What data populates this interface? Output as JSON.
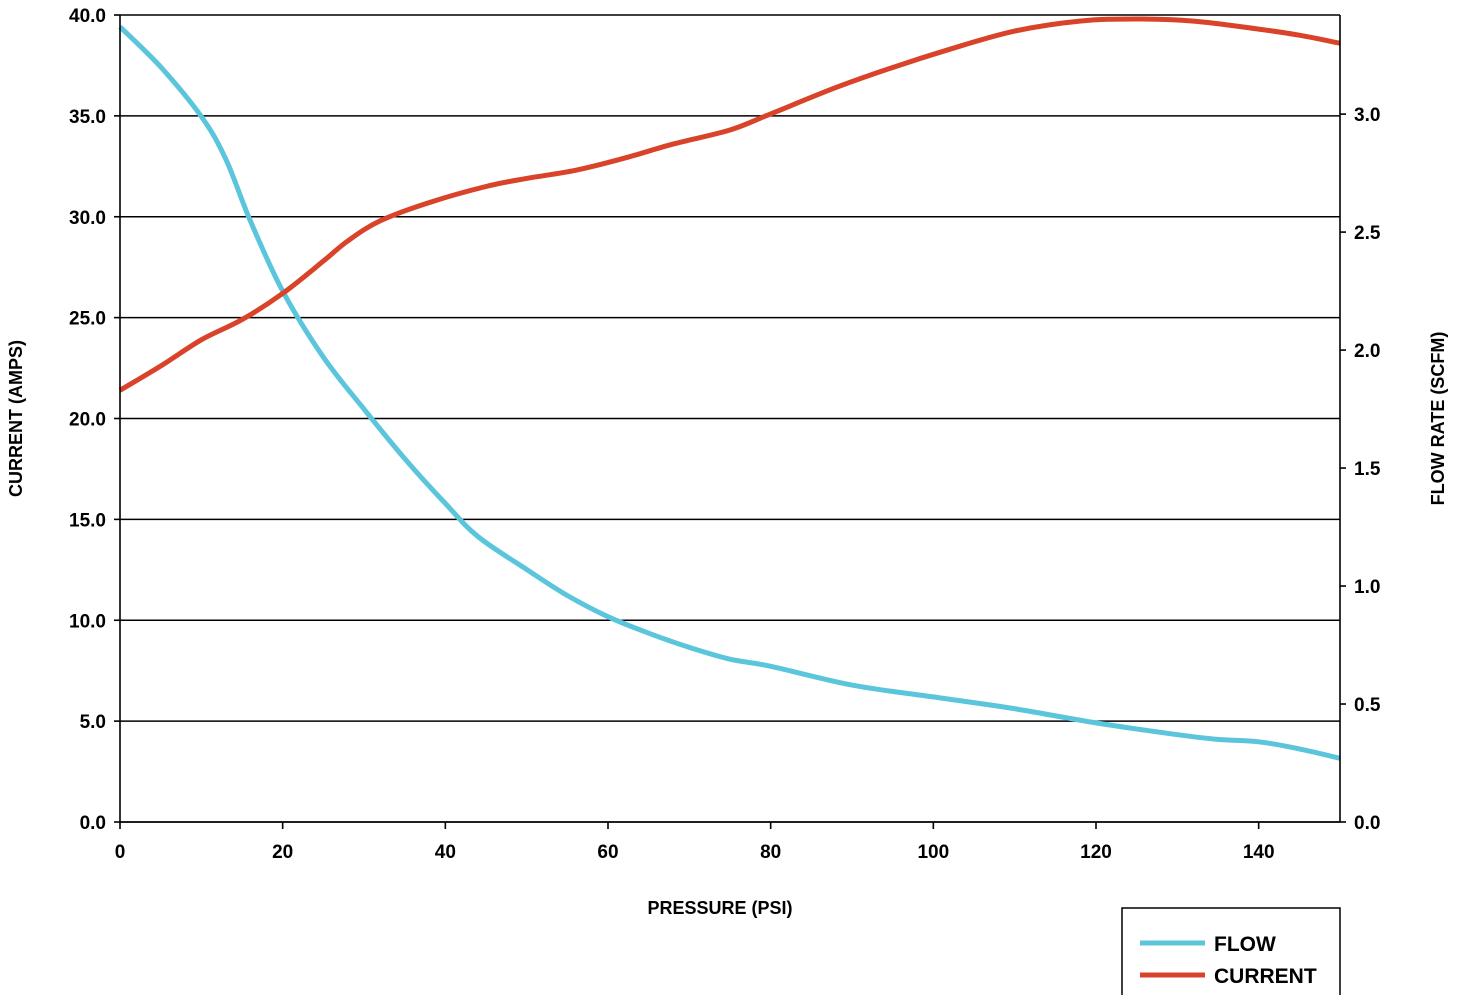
{
  "chart_data": {
    "type": "line",
    "title": "",
    "xlabel": "PRESSURE (PSI)",
    "ylabel": "CURRENT (AMPS)",
    "y2label": "FLOW RATE (SCFM)",
    "xlim": [
      0,
      150
    ],
    "ylim": [
      0,
      40
    ],
    "y2lim": [
      0,
      3.42
    ],
    "x_ticks": [
      "0",
      "20",
      "40",
      "60",
      "80",
      "100",
      "120",
      "140"
    ],
    "y_ticks": [
      "0.0",
      "5.0",
      "10.0",
      "15.0",
      "20.0",
      "25.0",
      "30.0",
      "35.0",
      "40.0"
    ],
    "y2_ticks": [
      "0.0",
      "0.5",
      "1.0",
      "1.5",
      "2.0",
      "2.5",
      "3.0"
    ],
    "grid": "horizontal",
    "legend_position": "bottom-right",
    "series": [
      {
        "name": "FLOW",
        "axis": "right",
        "color": "#5bc5dc",
        "x": [
          0,
          5,
          10,
          13,
          16,
          20,
          25,
          30,
          35,
          40,
          44,
          50,
          55,
          60,
          65,
          70,
          75,
          80,
          90,
          100,
          110,
          120,
          130,
          135,
          140,
          145,
          150
        ],
        "values": [
          3.37,
          3.2,
          2.99,
          2.81,
          2.55,
          2.25,
          1.97,
          1.75,
          1.54,
          1.35,
          1.21,
          1.07,
          0.96,
          0.87,
          0.8,
          0.74,
          0.69,
          0.66,
          0.58,
          0.53,
          0.48,
          0.42,
          0.37,
          0.35,
          0.34,
          0.31,
          0.27
        ]
      },
      {
        "name": "CURRENT",
        "axis": "left",
        "color": "#d9432a",
        "x": [
          0,
          5,
          10,
          15,
          20,
          25,
          28,
          32,
          38,
          45,
          50,
          56,
          62,
          68,
          75,
          80,
          88,
          95,
          102,
          110,
          118,
          125,
          132,
          140,
          145,
          150
        ],
        "values": [
          21.4,
          22.6,
          23.9,
          24.9,
          26.2,
          27.8,
          28.8,
          29.8,
          30.7,
          31.5,
          31.9,
          32.3,
          32.9,
          33.6,
          34.3,
          35.1,
          36.4,
          37.4,
          38.3,
          39.2,
          39.7,
          39.8,
          39.7,
          39.3,
          39.0,
          38.6
        ]
      }
    ]
  },
  "legend": {
    "items": [
      {
        "label": "FLOW",
        "color": "#5bc5dc"
      },
      {
        "label": "CURRENT",
        "color": "#d9432a"
      }
    ]
  }
}
